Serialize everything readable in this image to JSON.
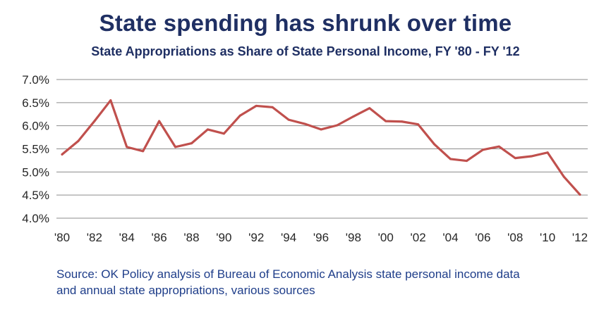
{
  "chart_data": {
    "type": "line",
    "title": "State spending has shrunk over time",
    "subtitle": "State Appropriations as Share of State Personal Income, FY '80 - FY '12",
    "xlabel": "",
    "ylabel": "",
    "x": [
      1980,
      1981,
      1982,
      1983,
      1984,
      1985,
      1986,
      1987,
      1988,
      1989,
      1990,
      1991,
      1992,
      1993,
      1994,
      1995,
      1996,
      1997,
      1998,
      1999,
      2000,
      2001,
      2002,
      2003,
      2004,
      2005,
      2006,
      2007,
      2008,
      2009,
      2010,
      2011,
      2012
    ],
    "x_tick_labels": [
      "'80",
      "'82",
      "'84",
      "'86",
      "'88",
      "'90",
      "'92",
      "'94",
      "'96",
      "'98",
      "'00",
      "'02",
      "'04",
      "'06",
      "'08",
      "'10",
      "'12"
    ],
    "x_tick_values": [
      1980,
      1982,
      1984,
      1986,
      1988,
      1990,
      1992,
      1994,
      1996,
      1998,
      2000,
      2002,
      2004,
      2006,
      2008,
      2010,
      2012
    ],
    "series": [
      {
        "values": [
          5.38,
          5.67,
          6.1,
          6.55,
          5.54,
          5.45,
          6.1,
          5.54,
          5.62,
          5.92,
          5.83,
          6.22,
          6.43,
          6.4,
          6.13,
          6.04,
          5.92,
          6.01,
          6.2,
          6.38,
          6.1,
          6.09,
          6.03,
          5.6,
          5.28,
          5.24,
          5.48,
          5.55,
          5.3,
          5.34,
          5.42,
          4.9,
          4.51
        ],
        "color": "#c0504d"
      }
    ],
    "ylim": [
      4.0,
      7.0
    ],
    "y_tick_values": [
      4.0,
      4.5,
      5.0,
      5.5,
      6.0,
      6.5,
      7.0
    ],
    "y_tick_labels": [
      "4.0%",
      "4.5%",
      "5.0%",
      "5.5%",
      "6.0%",
      "6.5%",
      "7.0%"
    ],
    "grid": true,
    "legend": "none"
  },
  "source_line1": "Source: OK Policy analysis of Bureau of Economic Analysis state personal income data",
  "source_line2": "and annual state appropriations, various sources",
  "colors": {
    "title": "#1f2f63",
    "line": "#c0504d",
    "grid": "#8c8c8c",
    "source": "#1f3e8a"
  }
}
